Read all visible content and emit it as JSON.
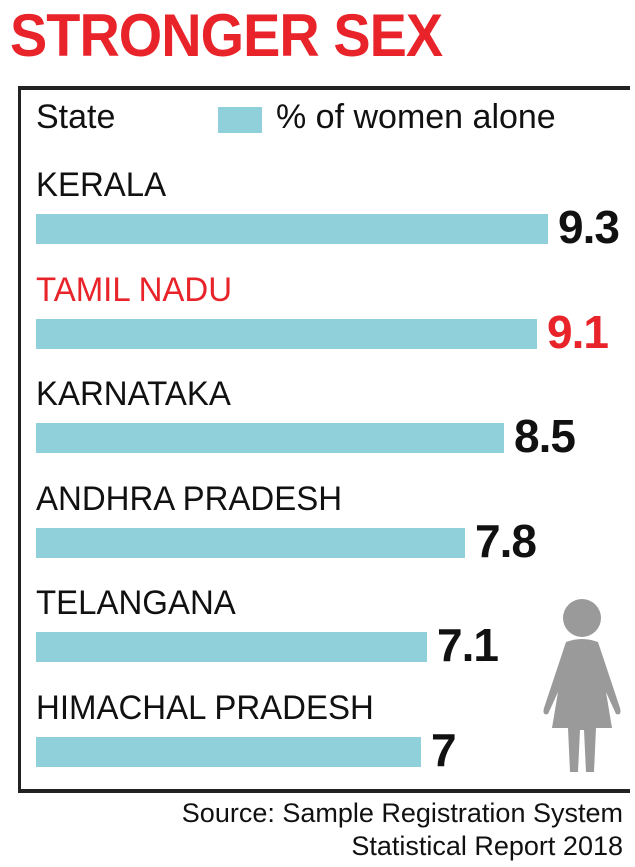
{
  "header": {
    "title": "STRONGER SEX",
    "column_label": "State",
    "legend_label": "% of women alone"
  },
  "chart_data": {
    "type": "bar",
    "orientation": "horizontal",
    "categories": [
      "KERALA",
      "TAMIL NADU",
      "KARNATAKA",
      "ANDHRA PRADESH",
      "TELANGANA",
      "HIMACHAL PRADESH"
    ],
    "values": [
      9.3,
      9.1,
      8.5,
      7.8,
      7.1,
      7
    ],
    "value_labels": [
      "9.3",
      "9.1",
      "8.5",
      "7.8",
      "7.1",
      "7"
    ],
    "highlighted": [
      "TAMIL NADU"
    ],
    "legend": "% of women alone",
    "xlim": [
      0,
      9.3
    ],
    "grid": false
  },
  "footer": {
    "source_line1": "Source: Sample Registration System",
    "source_line2": "Statistical Report 2018"
  },
  "colors": {
    "title": "#e8232a",
    "bar": "#8fd0da",
    "text": "#111111",
    "highlight": "#e8232a",
    "rule": "#222222",
    "figure": "#9a9a9a"
  },
  "icons": {
    "figure": "woman-silhouette-icon"
  }
}
